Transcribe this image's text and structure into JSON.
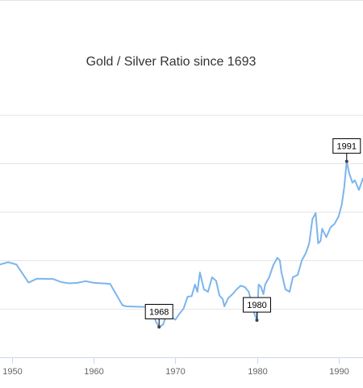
{
  "chart_data": {
    "type": "line",
    "title": "Gold / Silver Ratio since 1693",
    "xlabel": "",
    "ylabel": "",
    "xlim": [
      1948.5,
      1993
    ],
    "ylim": [
      0,
      120
    ],
    "x_ticks": [
      1950,
      1960,
      1970,
      1980,
      1990
    ],
    "y_gridlines": [
      20,
      40,
      60,
      80,
      100
    ],
    "grid": true,
    "legend": "none",
    "colors": {
      "line": "#7cb5ec",
      "grid": "#e6e6e6",
      "axis": "#ccd6eb",
      "title": "#333333",
      "tick": "#666666",
      "marker": "#434348"
    },
    "series": [
      {
        "values": [
          [
            1948.5,
            38.3
          ],
          [
            1949.5,
            39.2
          ],
          [
            1950.5,
            38.3
          ],
          [
            1952,
            30.8
          ],
          [
            1953,
            32.4
          ],
          [
            1955,
            32.3
          ],
          [
            1956,
            31.0
          ],
          [
            1957,
            30.5
          ],
          [
            1958,
            30.7
          ],
          [
            1959,
            31.4
          ],
          [
            1960,
            30.7
          ],
          [
            1961,
            30.5
          ],
          [
            1962,
            30.3
          ],
          [
            1963.5,
            21.5
          ],
          [
            1964,
            21.0
          ],
          [
            1966,
            20.8
          ],
          [
            1967,
            20.9
          ],
          [
            1967.6,
            14.8
          ],
          [
            1968,
            12.5
          ],
          [
            1968.5,
            13.5
          ],
          [
            1969,
            18.5
          ],
          [
            1969.5,
            16.5
          ],
          [
            1970,
            15.5
          ],
          [
            1970.5,
            18.0
          ],
          [
            1971,
            20.0
          ],
          [
            1971.5,
            25.0
          ],
          [
            1972,
            25.2
          ],
          [
            1972.4,
            30.0
          ],
          [
            1972.7,
            27.0
          ],
          [
            1973,
            35.0
          ],
          [
            1973.5,
            28.0
          ],
          [
            1974,
            27.0
          ],
          [
            1974.5,
            33.0
          ],
          [
            1975,
            31.5
          ],
          [
            1975.4,
            25.5
          ],
          [
            1975.8,
            24.0
          ],
          [
            1976,
            21.0
          ],
          [
            1976.5,
            24.5
          ],
          [
            1977,
            26.0
          ],
          [
            1977.5,
            28.0
          ],
          [
            1978,
            29.5
          ],
          [
            1978.5,
            29.0
          ],
          [
            1979,
            27.0
          ],
          [
            1979.5,
            20.0
          ],
          [
            1979.8,
            17.0
          ],
          [
            1980,
            15.3
          ],
          [
            1980.2,
            30.0
          ],
          [
            1980.5,
            29.0
          ],
          [
            1980.8,
            26.0
          ],
          [
            1981,
            30.0
          ],
          [
            1981.5,
            33.0
          ],
          [
            1982,
            38.0
          ],
          [
            1982.5,
            41.0
          ],
          [
            1982.8,
            40.0
          ],
          [
            1983,
            35.0
          ],
          [
            1983.5,
            28.0
          ],
          [
            1984,
            27.0
          ],
          [
            1984.4,
            33.0
          ],
          [
            1985,
            34.0
          ],
          [
            1985.5,
            40.0
          ],
          [
            1986,
            43.0
          ],
          [
            1986.4,
            47.0
          ],
          [
            1986.8,
            57.0
          ],
          [
            1987.2,
            59.5
          ],
          [
            1987.5,
            47.0
          ],
          [
            1987.8,
            48.0
          ],
          [
            1988,
            53.0
          ],
          [
            1988.5,
            49.5
          ],
          [
            1989,
            53.5
          ],
          [
            1989.5,
            55.0
          ],
          [
            1990,
            58.0
          ],
          [
            1990.4,
            63.0
          ],
          [
            1990.7,
            70.0
          ],
          [
            1991.0,
            80.8
          ],
          [
            1991.3,
            76.0
          ],
          [
            1991.7,
            72.0
          ],
          [
            1992,
            73.0
          ],
          [
            1992.5,
            69.0
          ],
          [
            1993,
            73.8
          ]
        ]
      }
    ],
    "annotations": [
      {
        "label": "1968",
        "x": 1968,
        "y": 12.5
      },
      {
        "label": "1980",
        "x": 1980,
        "y": 15.3
      },
      {
        "label": "1991",
        "x": 1991,
        "y": 80.8
      }
    ]
  }
}
